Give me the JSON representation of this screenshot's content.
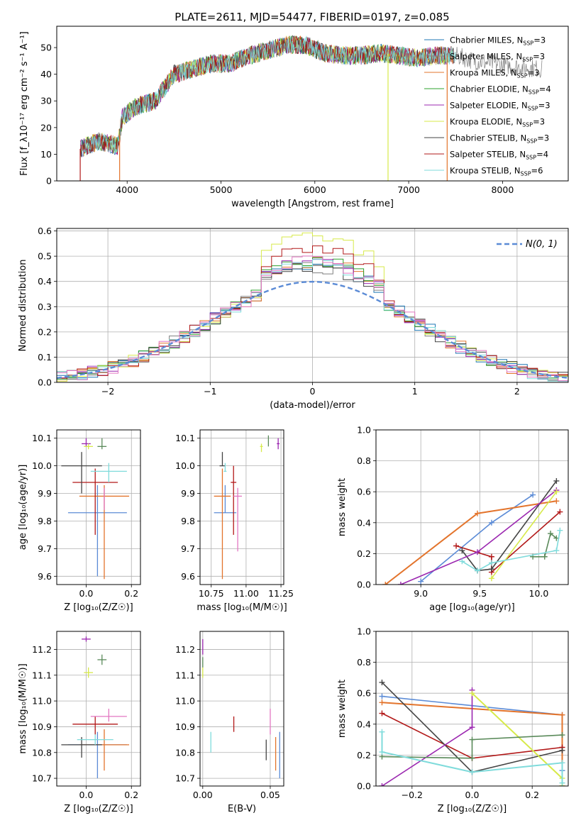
{
  "figure": {
    "title": "PLATE=2611, MJD=54477, FIBERID=0197, z=0.085"
  },
  "chart_data": [
    {
      "id": "spectrum",
      "type": "line",
      "xlabel": "wavelength [Angstrom, rest frame]",
      "ylabel": "Flux [f_λ10⁻¹⁷ erg cm⁻² s⁻¹ A⁻¹]",
      "xlim": [
        3250,
        8700
      ],
      "ylim": [
        0,
        58
      ],
      "xticks": [
        4000,
        5000,
        6000,
        7000,
        8000
      ],
      "yticks": [
        0,
        10,
        20,
        30,
        40,
        50
      ],
      "grid": false,
      "legend_position": "top-right",
      "anchors": [
        [
          3500,
          12
        ],
        [
          3700,
          15
        ],
        [
          3900,
          13
        ],
        [
          3950,
          24
        ],
        [
          4100,
          28
        ],
        [
          4300,
          30
        ],
        [
          4500,
          40
        ],
        [
          4700,
          42
        ],
        [
          4900,
          44
        ],
        [
          5100,
          44
        ],
        [
          5300,
          47
        ],
        [
          5500,
          49
        ],
        [
          5700,
          51
        ],
        [
          5900,
          51
        ],
        [
          6100,
          48
        ],
        [
          6300,
          47
        ],
        [
          6500,
          47
        ],
        [
          6700,
          48
        ],
        [
          6900,
          47
        ],
        [
          7100,
          46
        ],
        [
          7300,
          47
        ],
        [
          7500,
          47
        ],
        [
          7700,
          45
        ],
        [
          7900,
          44
        ],
        [
          8100,
          43
        ],
        [
          8400,
          42
        ]
      ],
      "drop_lines": [
        {
          "x": 3500,
          "series": 7
        },
        {
          "x": 3920,
          "series": 2
        },
        {
          "x": 6780,
          "series": 5
        },
        {
          "x": 7410,
          "series": 2
        }
      ],
      "series": [
        {
          "name": "Chabrier MILES, N",
          "sub": "SSP",
          "suffix": "=3",
          "color": "#1f77b4"
        },
        {
          "name": "Salpeter MILES, N",
          "sub": "SSP",
          "suffix": "=3",
          "color": "#7f7f7f"
        },
        {
          "name": "Kroupa MILES, N",
          "sub": "SSP",
          "suffix": "=3",
          "color": "#e3742c"
        },
        {
          "name": "Chabrier ELODIE, N",
          "sub": "SSP",
          "suffix": "=4",
          "color": "#2ca02c"
        },
        {
          "name": "Salpeter ELODIE, N",
          "sub": "SSP",
          "suffix": "=3",
          "color": "#9b27b0"
        },
        {
          "name": "Kroupa ELODIE, N",
          "sub": "SSP",
          "suffix": "=3",
          "color": "#d7ea4a"
        },
        {
          "name": "Chabrier STELIB, N",
          "sub": "SSP",
          "suffix": "=3",
          "color": "#444444"
        },
        {
          "name": "Salpeter STELIB, N",
          "sub": "SSP",
          "suffix": "=4",
          "color": "#b21818"
        },
        {
          "name": "Kroupa STELIB, N",
          "sub": "SSP",
          "suffix": "=6",
          "color": "#7fdbdb"
        }
      ]
    },
    {
      "id": "residuals",
      "type": "area",
      "xlabel": "(data-model)/error",
      "ylabel": "Normed distribution",
      "xlim": [
        -2.5,
        2.5
      ],
      "ylim": [
        0,
        0.61
      ],
      "xticks": [
        -2,
        -1,
        0,
        1,
        2
      ],
      "xtick_labels": [
        "−2",
        "−1",
        "0",
        "1",
        "2"
      ],
      "yticks": [
        0.0,
        0.1,
        0.2,
        0.3,
        0.4,
        0.5,
        0.6
      ],
      "ytick_labels": [
        "0.0",
        "0.1",
        "0.2",
        "0.3",
        "0.4",
        "0.5",
        "0.6"
      ],
      "grid": true,
      "legend_position": "top-right",
      "gaussian_label": "N(0, 1)",
      "gaussian_color": "#5b8bd6",
      "bin_width": 0.1,
      "colors": [
        "#1f77b4",
        "#7f7f7f",
        "#e3742c",
        "#2ca02c",
        "#9b27b0",
        "#d7ea4a",
        "#444444",
        "#b21818",
        "#7fdbdb",
        "#e377c2"
      ],
      "peaks": [
        0.47,
        0.46,
        0.48,
        0.48,
        0.48,
        0.58,
        0.46,
        0.53,
        0.47,
        0.48
      ]
    },
    {
      "id": "age-vs-z",
      "type": "scatter",
      "xlabel": "Z [log₁₀(Z/Z☉)]",
      "ylabel": "age [log₁₀(age/yr)]",
      "xlim": [
        -0.13,
        0.24
      ],
      "ylim": [
        9.57,
        10.13
      ],
      "xticks": [
        0.0,
        0.2
      ],
      "xtick_labels": [
        "0.0",
        "0.2"
      ],
      "yticks": [
        9.6,
        9.7,
        9.8,
        9.9,
        10.0,
        10.1
      ],
      "yticks_labels": [
        "9.6",
        "9.7",
        "9.8",
        "9.9",
        "10.0",
        "10.1"
      ],
      "grid": true,
      "points": [
        {
          "x": 0.05,
          "y": 9.83,
          "xerr": 0.13,
          "yerr_lo": 0.23,
          "yerr_hi": 0.1,
          "color": "#5b8bd6"
        },
        {
          "x": 0.08,
          "y": 9.89,
          "xerr": 0.11,
          "yerr_lo": 0.3,
          "yerr_hi": 0.04,
          "color": "#e3742c"
        },
        {
          "x": 0.04,
          "y": 9.94,
          "xerr": 0.1,
          "yerr_lo": 0.19,
          "yerr_hi": 0.05,
          "color": "#b21818"
        },
        {
          "x": -0.02,
          "y": 10.0,
          "xerr": 0.09,
          "yerr_lo": 0.1,
          "yerr_hi": 0.05,
          "color": "#444444"
        },
        {
          "x": 0.1,
          "y": 9.98,
          "xerr": 0.08,
          "yerr_lo": 0.04,
          "yerr_hi": 0.03,
          "color": "#7fdbdb"
        },
        {
          "x": 0.08,
          "y": 9.88,
          "xerr": 0.0,
          "yerr_lo": 0.04,
          "yerr_hi": 0.04,
          "color": "#e377c2"
        },
        {
          "x": 0.0,
          "y": 10.08,
          "xerr": 0.02,
          "yerr_lo": 0.01,
          "yerr_hi": 0.02,
          "color": "#9b27b0"
        },
        {
          "x": 0.01,
          "y": 10.07,
          "xerr": 0.02,
          "yerr_lo": 0.01,
          "yerr_hi": 0.01,
          "color": "#d7ea4a"
        },
        {
          "x": 0.07,
          "y": 10.07,
          "xerr": 0.02,
          "yerr_lo": 0.01,
          "yerr_hi": 0.03,
          "color": "#5a8a5a"
        }
      ]
    },
    {
      "id": "age-vs-mass",
      "type": "scatter",
      "xlabel": "mass [log₁₀(M/M☉)]",
      "ylabel": "",
      "xlim": [
        10.67,
        11.27
      ],
      "ylim": [
        9.57,
        10.13
      ],
      "xticks": [
        10.75,
        11.0,
        11.25
      ],
      "xtick_labels": [
        "10.75",
        "11.00",
        "11.25"
      ],
      "yticks": [
        9.6,
        9.7,
        9.8,
        9.9,
        10.0,
        10.1
      ],
      "yticks_labels": [
        "9.6",
        "9.7",
        "9.8",
        "9.9",
        "10.0",
        "10.1"
      ],
      "grid": true,
      "points": [
        {
          "x": 10.85,
          "y": 9.83,
          "xerr": 0.08,
          "yerr_lo": 0.0,
          "yerr_hi": 0.1,
          "color": "#5b8bd6"
        },
        {
          "x": 10.83,
          "y": 9.89,
          "xerr": 0.06,
          "yerr_lo": 0.3,
          "yerr_hi": 0.1,
          "color": "#e3742c"
        },
        {
          "x": 10.91,
          "y": 9.94,
          "xerr": 0.02,
          "yerr_lo": 0.19,
          "yerr_hi": 0.06,
          "color": "#b21818"
        },
        {
          "x": 10.83,
          "y": 10.0,
          "xerr": 0.02,
          "yerr_lo": 0.0,
          "yerr_hi": 0.05,
          "color": "#444444"
        },
        {
          "x": 10.85,
          "y": 9.98,
          "xerr": 0.01,
          "yerr_lo": 0.0,
          "yerr_hi": 0.03,
          "color": "#7fdbdb"
        },
        {
          "x": 10.94,
          "y": 9.89,
          "xerr": 0.03,
          "yerr_lo": 0.2,
          "yerr_hi": 0.03,
          "color": "#e377c2"
        },
        {
          "x": 11.23,
          "y": 10.08,
          "xerr": 0.01,
          "yerr_lo": 0.02,
          "yerr_hi": 0.02,
          "color": "#9b27b0"
        },
        {
          "x": 11.11,
          "y": 10.07,
          "xerr": 0.01,
          "yerr_lo": 0.02,
          "yerr_hi": 0.01,
          "color": "#d7ea4a"
        },
        {
          "x": 11.16,
          "y": 10.08,
          "xerr": 0.0,
          "yerr_lo": 0.01,
          "yerr_hi": 0.03,
          "color": "#5a8a5a"
        }
      ]
    },
    {
      "id": "weight-vs-age",
      "type": "line",
      "xlabel": "age [log₁₀(age/yr)]",
      "ylabel": "mass weight",
      "xlim": [
        8.62,
        10.25
      ],
      "ylim": [
        0,
        1
      ],
      "xticks": [
        9.0,
        9.5,
        10.0
      ],
      "xtick_labels": [
        "9.0",
        "9.5",
        "10.0"
      ],
      "yticks": [
        0,
        0.2,
        0.4,
        0.6,
        0.8,
        1.0
      ],
      "ytick_labels": [
        "0.0",
        "0.2",
        "0.4",
        "0.6",
        "0.8",
        "1.0"
      ],
      "grid": true,
      "series": [
        {
          "color": "#5b8bd6",
          "x": [
            9.0,
            9.6,
            9.95
          ],
          "y": [
            0.02,
            0.4,
            0.58
          ]
        },
        {
          "color": "#e3742c",
          "x": [
            8.7,
            9.48,
            10.15
          ],
          "y": [
            0.0,
            0.46,
            0.54
          ],
          "width": 2
        },
        {
          "color": "#b21818",
          "x": [
            9.3,
            9.6,
            9.6,
            10.18
          ],
          "y": [
            0.25,
            0.18,
            0.08,
            0.47
          ]
        },
        {
          "color": "#444444",
          "x": [
            9.35,
            9.48,
            9.6,
            10.15
          ],
          "y": [
            0.22,
            0.09,
            0.1,
            0.67
          ]
        },
        {
          "color": "#9b27b0",
          "x": [
            8.83,
            9.48,
            10.15
          ],
          "y": [
            0.0,
            0.21,
            0.61
          ]
        },
        {
          "color": "#d7ea4a",
          "x": [
            9.6,
            10.15
          ],
          "y": [
            0.04,
            0.6
          ]
        },
        {
          "color": "#5a8a5a",
          "x": [
            9.95,
            10.05,
            10.1,
            10.15
          ],
          "y": [
            0.18,
            0.18,
            0.33,
            0.3
          ]
        },
        {
          "color": "#7fdbdb",
          "x": [
            9.35,
            9.48,
            9.6,
            10.15,
            10.18
          ],
          "y": [
            0.15,
            0.09,
            0.14,
            0.22,
            0.35
          ]
        }
      ]
    },
    {
      "id": "mass-vs-z",
      "type": "scatter",
      "xlabel": "Z [log₁₀(Z/Z☉)]",
      "ylabel": "mass [log₁₀(M/M☉)]",
      "xlim": [
        -0.13,
        0.24
      ],
      "ylim": [
        10.67,
        11.27
      ],
      "xticks": [
        0.0,
        0.2
      ],
      "xtick_labels": [
        "0.0",
        "0.2"
      ],
      "yticks": [
        10.7,
        10.8,
        10.9,
        11.0,
        11.1,
        11.2
      ],
      "yticks_labels": [
        "10.7",
        "10.8",
        "10.9",
        "11.0",
        "11.1",
        "11.2"
      ],
      "grid": true,
      "points": [
        {
          "x": 0.05,
          "y": 10.83,
          "xerr": 0.13,
          "yerr_lo": 0.13,
          "yerr_hi": 0.05,
          "color": "#5b8bd6"
        },
        {
          "x": 0.08,
          "y": 10.83,
          "xerr": 0.11,
          "yerr_lo": 0.1,
          "yerr_hi": 0.06,
          "color": "#e3742c"
        },
        {
          "x": 0.04,
          "y": 10.91,
          "xerr": 0.1,
          "yerr_lo": 0.04,
          "yerr_hi": 0.03,
          "color": "#b21818"
        },
        {
          "x": -0.02,
          "y": 10.83,
          "xerr": 0.09,
          "yerr_lo": 0.05,
          "yerr_hi": 0.03,
          "color": "#444444"
        },
        {
          "x": 0.04,
          "y": 10.85,
          "xerr": 0.08,
          "yerr_lo": 0.02,
          "yerr_hi": 0.02,
          "color": "#7fdbdb"
        },
        {
          "x": 0.1,
          "y": 10.94,
          "xerr": 0.08,
          "yerr_lo": 0.02,
          "yerr_hi": 0.03,
          "color": "#e377c2"
        },
        {
          "x": 0.0,
          "y": 11.24,
          "xerr": 0.02,
          "yerr_lo": 0.01,
          "yerr_hi": 0.01,
          "color": "#9b27b0"
        },
        {
          "x": 0.01,
          "y": 11.11,
          "xerr": 0.02,
          "yerr_lo": 0.02,
          "yerr_hi": 0.02,
          "color": "#d7ea4a"
        },
        {
          "x": 0.07,
          "y": 11.16,
          "xerr": 0.02,
          "yerr_lo": 0.02,
          "yerr_hi": 0.02,
          "color": "#5a8a5a"
        }
      ]
    },
    {
      "id": "mass-vs-ebv",
      "type": "scatter",
      "xlabel": "E(B-V)",
      "ylabel": "",
      "xlim": [
        -0.002,
        0.06
      ],
      "ylim": [
        10.67,
        11.27
      ],
      "xticks": [
        0.0,
        0.05
      ],
      "xtick_labels": [
        "0.00",
        "0.05"
      ],
      "yticks": [
        10.7,
        10.8,
        10.9,
        11.0,
        11.1,
        11.2
      ],
      "yticks_labels": [
        "10.7",
        "10.8",
        "10.9",
        "11.0",
        "11.1",
        "11.2"
      ],
      "grid": true,
      "points": [
        {
          "x": 0.057,
          "y": 10.79,
          "xerr": 0,
          "yerr_lo": 0.09,
          "yerr_hi": 0.09,
          "color": "#5b8bd6"
        },
        {
          "x": 0.054,
          "y": 10.8,
          "xerr": 0,
          "yerr_lo": 0.07,
          "yerr_hi": 0.06,
          "color": "#e3742c"
        },
        {
          "x": 0.023,
          "y": 10.91,
          "xerr": 0,
          "yerr_lo": 0.03,
          "yerr_hi": 0.03,
          "color": "#b21818"
        },
        {
          "x": 0.047,
          "y": 10.81,
          "xerr": 0,
          "yerr_lo": 0.04,
          "yerr_hi": 0.04,
          "color": "#444444"
        },
        {
          "x": 0.006,
          "y": 10.84,
          "xerr": 0,
          "yerr_lo": 0.04,
          "yerr_hi": 0.04,
          "color": "#7fdbdb"
        },
        {
          "x": 0.05,
          "y": 10.92,
          "xerr": 0,
          "yerr_lo": 0.05,
          "yerr_hi": 0.05,
          "color": "#e377c2"
        },
        {
          "x": 0.0,
          "y": 11.21,
          "xerr": 0,
          "yerr_lo": 0.03,
          "yerr_hi": 0.03,
          "color": "#9b27b0"
        },
        {
          "x": 0.0,
          "y": 11.11,
          "xerr": 0,
          "yerr_lo": 0.02,
          "yerr_hi": 0.02,
          "color": "#d7ea4a"
        },
        {
          "x": 0.0,
          "y": 11.15,
          "xerr": 0,
          "yerr_lo": 0.02,
          "yerr_hi": 0.02,
          "color": "#5a8a5a"
        }
      ]
    },
    {
      "id": "weight-vs-z",
      "type": "line",
      "xlabel": "Z [log₁₀(Z/Z☉)]",
      "ylabel": "mass weight",
      "xlim": [
        -0.32,
        0.32
      ],
      "ylim": [
        0,
        1
      ],
      "xticks": [
        -0.2,
        0.0,
        0.2
      ],
      "xtick_labels": [
        "−0.2",
        "0.0",
        "0.2"
      ],
      "yticks": [
        0,
        0.2,
        0.4,
        0.6,
        0.8,
        1.0
      ],
      "ytick_labels": [
        "0.0",
        "0.2",
        "0.4",
        "0.6",
        "0.8",
        "1.0"
      ],
      "grid": true,
      "series": [
        {
          "color": "#5b8bd6",
          "x": [
            -0.3,
            0.3,
            0.3
          ],
          "y": [
            0.58,
            0.46,
            0.1
          ]
        },
        {
          "color": "#e3742c",
          "x": [
            -0.3,
            0.3,
            0.3
          ],
          "y": [
            0.54,
            0.46,
            0.0
          ],
          "width": 2
        },
        {
          "color": "#b21818",
          "x": [
            -0.3,
            0.0,
            0.3
          ],
          "y": [
            0.47,
            0.18,
            0.25
          ]
        },
        {
          "color": "#444444",
          "x": [
            -0.3,
            0.0,
            0.3
          ],
          "y": [
            0.67,
            0.09,
            0.23
          ]
        },
        {
          "color": "#9b27b0",
          "x": [
            -0.3,
            0.0,
            0.0
          ],
          "y": [
            0.0,
            0.38,
            0.62
          ]
        },
        {
          "color": "#d7ea4a",
          "x": [
            0.0,
            0.3,
            0.3
          ],
          "y": [
            0.6,
            0.05,
            0.0
          ],
          "width": 2
        },
        {
          "color": "#5a8a5a",
          "x": [
            -0.3,
            0.0,
            0.0,
            0.3
          ],
          "y": [
            0.19,
            0.18,
            0.3,
            0.33
          ]
        },
        {
          "color": "#7fdbdb",
          "x": [
            -0.3,
            -0.3,
            0.0,
            0.3,
            0.3
          ],
          "y": [
            0.35,
            0.22,
            0.09,
            0.15,
            0.02
          ],
          "width": 2
        }
      ]
    }
  ]
}
